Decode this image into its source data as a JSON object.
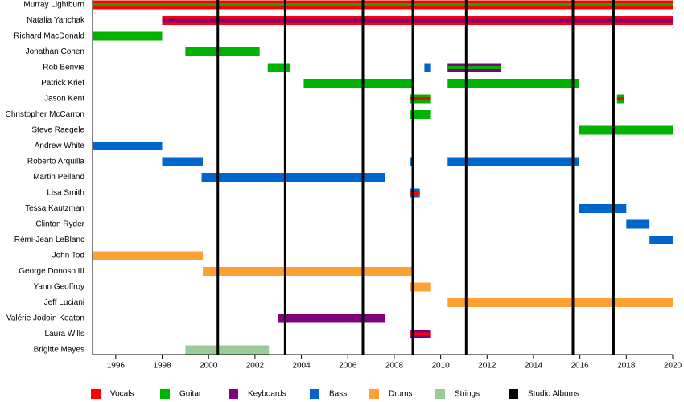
{
  "chart_data": {
    "type": "timeline",
    "xlim": [
      1995,
      2020
    ],
    "xticks": [
      1996,
      1998,
      2000,
      2002,
      2004,
      2006,
      2008,
      2010,
      2012,
      2014,
      2016,
      2018,
      2020
    ],
    "series": [
      {
        "name": "Vocals",
        "color": "#ff0000"
      },
      {
        "name": "Guitar",
        "color": "#00b300"
      },
      {
        "name": "Keyboards",
        "color": "#800080"
      },
      {
        "name": "Bass",
        "color": "#0066cc"
      },
      {
        "name": "Drums",
        "color": "#ffa033"
      },
      {
        "name": "Strings",
        "color": "#99cc99"
      },
      {
        "name": "Studio Albums",
        "color": "#000000",
        "values": [
          2000.4,
          2003.3,
          2006.65,
          2008.8,
          2011.1,
          2015.7,
          2017.45
        ]
      }
    ],
    "members": [
      {
        "name": "Murray Lightburn",
        "periods": [
          {
            "start": 1995,
            "end": 2020,
            "roles": [
              "Vocals",
              "Guitar"
            ]
          }
        ]
      },
      {
        "name": "Natalia Yanchak",
        "periods": [
          {
            "start": 1998,
            "end": 2020,
            "roles": [
              "Vocals",
              "Keyboards"
            ]
          }
        ]
      },
      {
        "name": "Richard MacDonald",
        "periods": [
          {
            "start": 1995,
            "end": 1998,
            "roles": [
              "Guitar"
            ]
          }
        ]
      },
      {
        "name": "Jonathan Cohen",
        "periods": [
          {
            "start": 1999,
            "end": 2002.2,
            "roles": [
              "Guitar"
            ]
          }
        ]
      },
      {
        "name": "Rob Benvie",
        "periods": [
          {
            "start": 2002.55,
            "end": 2003.5,
            "roles": [
              "Guitar"
            ]
          },
          {
            "start": 2009.3,
            "end": 2009.55,
            "roles": [
              "Bass"
            ]
          },
          {
            "start": 2010.3,
            "end": 2012.6,
            "roles": [
              "Keyboards",
              "Guitar"
            ]
          }
        ]
      },
      {
        "name": "Patrick Krief",
        "periods": [
          {
            "start": 2004.1,
            "end": 2008.8,
            "roles": [
              "Guitar"
            ]
          },
          {
            "start": 2010.3,
            "end": 2015.95,
            "roles": [
              "Guitar"
            ]
          }
        ]
      },
      {
        "name": "Jason Kent",
        "periods": [
          {
            "start": 2008.7,
            "end": 2009.55,
            "roles": [
              "Guitar",
              "Vocals"
            ]
          },
          {
            "start": 2017.6,
            "end": 2017.9,
            "roles": [
              "Guitar",
              "Vocals"
            ]
          }
        ]
      },
      {
        "name": "Christopher McCarron",
        "periods": [
          {
            "start": 2008.7,
            "end": 2009.55,
            "roles": [
              "Guitar"
            ]
          }
        ]
      },
      {
        "name": "Steve Raegele",
        "periods": [
          {
            "start": 2015.95,
            "end": 2020,
            "roles": [
              "Guitar"
            ]
          }
        ]
      },
      {
        "name": "Andrew White",
        "periods": [
          {
            "start": 1995,
            "end": 1998,
            "roles": [
              "Bass"
            ]
          }
        ]
      },
      {
        "name": "Roberto Arquilla",
        "periods": [
          {
            "start": 1998,
            "end": 1999.75,
            "roles": [
              "Bass"
            ]
          },
          {
            "start": 2008.7,
            "end": 2008.8,
            "roles": [
              "Bass"
            ]
          },
          {
            "start": 2010.3,
            "end": 2015.95,
            "roles": [
              "Bass"
            ]
          }
        ]
      },
      {
        "name": "Martin Pelland",
        "periods": [
          {
            "start": 1999.7,
            "end": 2007.6,
            "roles": [
              "Bass"
            ]
          }
        ]
      },
      {
        "name": "Lisa Smith",
        "periods": [
          {
            "start": 2008.7,
            "end": 2009.1,
            "roles": [
              "Bass",
              "Vocals"
            ]
          }
        ]
      },
      {
        "name": "Tessa Kautzman",
        "periods": [
          {
            "start": 2015.95,
            "end": 2018,
            "roles": [
              "Bass"
            ]
          }
        ]
      },
      {
        "name": "Clinton Ryder",
        "periods": [
          {
            "start": 2018,
            "end": 2019,
            "roles": [
              "Bass"
            ]
          }
        ]
      },
      {
        "name": "Rémi-Jean LeBlanc",
        "periods": [
          {
            "start": 2019,
            "end": 2020,
            "roles": [
              "Bass"
            ]
          }
        ]
      },
      {
        "name": "John Tod",
        "periods": [
          {
            "start": 1995,
            "end": 1999.75,
            "roles": [
              "Drums"
            ]
          }
        ]
      },
      {
        "name": "George Donoso III",
        "periods": [
          {
            "start": 1999.75,
            "end": 2008.8,
            "roles": [
              "Drums"
            ]
          }
        ]
      },
      {
        "name": "Yann Geoffroy",
        "periods": [
          {
            "start": 2008.7,
            "end": 2009.55,
            "roles": [
              "Drums"
            ]
          }
        ]
      },
      {
        "name": "Jeff Luciani",
        "periods": [
          {
            "start": 2010.3,
            "end": 2020,
            "roles": [
              "Drums"
            ]
          }
        ]
      },
      {
        "name": "Valérie Jodoin Keaton",
        "periods": [
          {
            "start": 2003,
            "end": 2007.6,
            "roles": [
              "Keyboards"
            ]
          }
        ]
      },
      {
        "name": "Laura Wills",
        "periods": [
          {
            "start": 2008.7,
            "end": 2009.55,
            "roles": [
              "Keyboards",
              "Vocals"
            ]
          }
        ]
      },
      {
        "name": "Brigitte Mayes",
        "periods": [
          {
            "start": 1999,
            "end": 2002.6,
            "roles": [
              "Strings"
            ]
          }
        ]
      }
    ]
  }
}
